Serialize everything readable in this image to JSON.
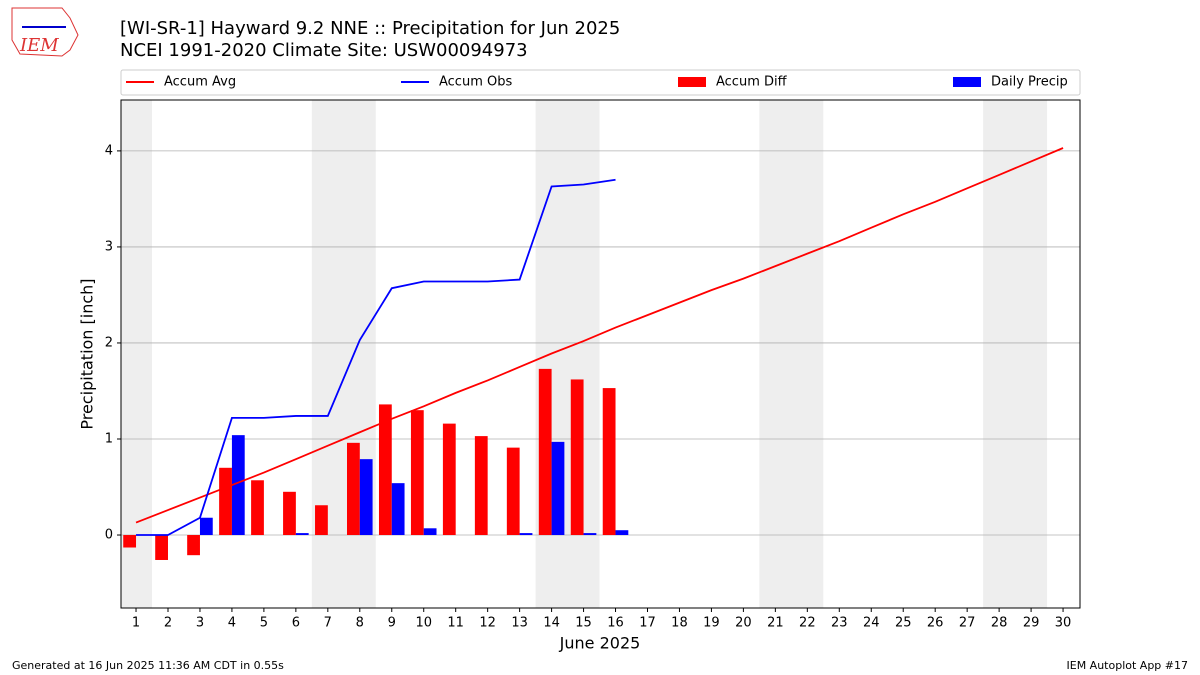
{
  "chart_data": {
    "type": "combo",
    "title": "[WI-SR-1] Hayward 9.2 NNE :: Precipitation for Jun 2025",
    "subtitle": "NCEI 1991-2020 Climate Site: USW00094973",
    "x_label": "June 2025",
    "y_label": "Precipitation [inch]",
    "x": [
      1,
      2,
      3,
      4,
      5,
      6,
      7,
      8,
      9,
      10,
      11,
      12,
      13,
      14,
      15,
      16,
      17,
      18,
      19,
      20,
      21,
      22,
      23,
      24,
      25,
      26,
      27,
      28,
      29,
      30
    ],
    "xlim": [
      0.53,
      30.53
    ],
    "xticks": [
      1,
      2,
      3,
      4,
      5,
      6,
      7,
      8,
      9,
      10,
      11,
      12,
      13,
      14,
      15,
      16,
      17,
      18,
      19,
      20,
      21,
      22,
      23,
      24,
      25,
      26,
      27,
      28,
      29,
      30
    ],
    "ylim": [
      -0.76,
      4.53
    ],
    "yticks": [
      0,
      1,
      2,
      3,
      4
    ],
    "grid": true,
    "shaded_spans": [
      [
        0.5,
        1.5
      ],
      [
        6.5,
        8.5
      ],
      [
        13.5,
        15.5
      ],
      [
        20.5,
        22.5
      ],
      [
        27.5,
        29.5
      ]
    ],
    "shade_color": "#eeeeee",
    "series": [
      {
        "name": "Accum Avg",
        "type": "line",
        "color": "#ff0000",
        "values": [
          0.13,
          0.26,
          0.39,
          0.52,
          0.65,
          0.79,
          0.93,
          1.07,
          1.21,
          1.34,
          1.48,
          1.61,
          1.75,
          1.89,
          2.02,
          2.16,
          2.29,
          2.42,
          2.55,
          2.67,
          2.8,
          2.93,
          3.06,
          3.2,
          3.34,
          3.47,
          3.61,
          3.75,
          3.89,
          4.03
        ]
      },
      {
        "name": "Accum Obs",
        "type": "line",
        "color": "#0000ff",
        "values": [
          0,
          0,
          0.18,
          1.22,
          1.22,
          1.24,
          1.24,
          2.03,
          2.57,
          2.64,
          2.64,
          2.64,
          2.66,
          3.63,
          3.65,
          3.7,
          null,
          null,
          null,
          null,
          null,
          null,
          null,
          null,
          null,
          null,
          null,
          null,
          null,
          null
        ]
      },
      {
        "name": "Accum Diff",
        "type": "bar",
        "offset": -0.4,
        "color": "#ff0000",
        "values": [
          -0.13,
          -0.26,
          -0.21,
          0.7,
          0.57,
          0.45,
          0.31,
          0.96,
          1.36,
          1.3,
          1.16,
          1.03,
          0.91,
          1.73,
          1.62,
          1.53,
          null,
          null,
          null,
          null,
          null,
          null,
          null,
          null,
          null,
          null,
          null,
          null,
          null,
          null
        ]
      },
      {
        "name": "Daily Precip",
        "type": "bar",
        "offset": 0,
        "color": "#0000ff",
        "values": [
          0,
          0,
          0.18,
          1.04,
          0,
          0.02,
          0,
          0.79,
          0.54,
          0.07,
          0,
          0,
          0.02,
          0.97,
          0.02,
          0.05,
          null,
          null,
          null,
          null,
          null,
          null,
          null,
          null,
          null,
          null,
          null,
          null,
          null,
          null
        ]
      }
    ],
    "logo_text": "IEM",
    "footer_left": "Generated at 16 Jun 2025 11:36 AM CDT in 0.55s",
    "footer_right": "IEM Autoplot App #17"
  }
}
